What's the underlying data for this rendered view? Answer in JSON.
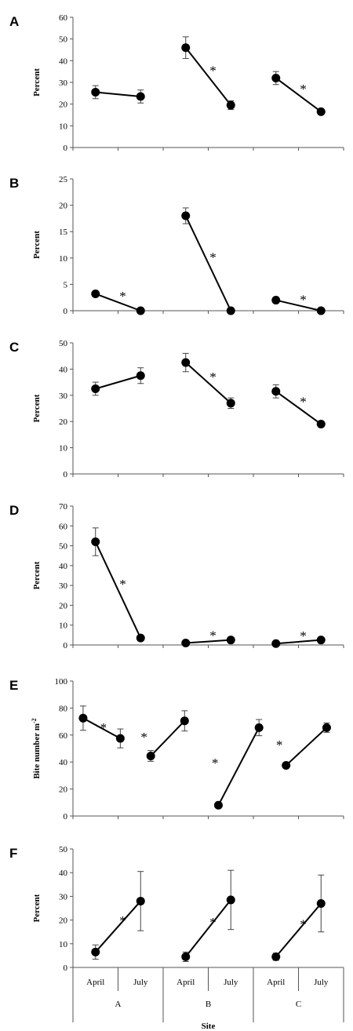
{
  "chart_data": [
    {
      "panel": "A",
      "type": "line",
      "ylabel": "Percent",
      "ylim": [
        0,
        60
      ],
      "yticks": [
        0,
        10,
        20,
        30,
        40,
        50,
        60
      ],
      "categories": [
        "April",
        "July"
      ],
      "groups": [
        {
          "site": "A",
          "values": [
            25.5,
            23.5
          ],
          "errors": [
            3,
            3
          ],
          "significant": false
        },
        {
          "site": "B",
          "values": [
            46,
            19.5
          ],
          "errors": [
            5,
            2
          ],
          "significant": true
        },
        {
          "site": "C",
          "values": [
            32,
            16.5
          ],
          "errors": [
            3,
            1
          ],
          "significant": true
        }
      ]
    },
    {
      "panel": "B",
      "type": "line",
      "ylabel": "Percent",
      "ylim": [
        0,
        25
      ],
      "yticks": [
        0,
        5,
        10,
        15,
        20,
        25
      ],
      "categories": [
        "April",
        "July"
      ],
      "groups": [
        {
          "site": "A",
          "values": [
            3.2,
            0
          ],
          "errors": [
            0.3,
            0
          ],
          "significant": true
        },
        {
          "site": "B",
          "values": [
            18,
            0
          ],
          "errors": [
            1.5,
            0
          ],
          "significant": true
        },
        {
          "site": "C",
          "values": [
            2,
            0
          ],
          "errors": [
            0.3,
            0
          ],
          "significant": true
        }
      ]
    },
    {
      "panel": "C",
      "type": "line",
      "ylabel": "Percent",
      "ylim": [
        0,
        50
      ],
      "yticks": [
        0,
        10,
        20,
        30,
        40,
        50
      ],
      "categories": [
        "April",
        "July"
      ],
      "groups": [
        {
          "site": "A",
          "values": [
            32.5,
            37.5
          ],
          "errors": [
            2.5,
            3
          ],
          "significant": false
        },
        {
          "site": "B",
          "values": [
            42.5,
            27
          ],
          "errors": [
            3.5,
            2
          ],
          "significant": true
        },
        {
          "site": "C",
          "values": [
            31.5,
            19
          ],
          "errors": [
            2.5,
            1
          ],
          "significant": true
        }
      ]
    },
    {
      "panel": "D",
      "type": "line",
      "ylabel": "Percent",
      "ylim": [
        0,
        70
      ],
      "yticks": [
        0,
        10,
        20,
        30,
        40,
        50,
        60,
        70
      ],
      "categories": [
        "April",
        "July"
      ],
      "groups": [
        {
          "site": "A",
          "values": [
            52,
            3.5
          ],
          "errors": [
            7,
            0.5
          ],
          "significant": true
        },
        {
          "site": "B",
          "values": [
            1,
            2.5
          ],
          "errors": [
            0.3,
            0.3
          ],
          "significant": true
        },
        {
          "site": "C",
          "values": [
            0.7,
            2.5
          ],
          "errors": [
            0.2,
            0.3
          ],
          "significant": true
        }
      ]
    },
    {
      "panel": "E",
      "type": "line",
      "ylabel": "Bite number m",
      "ylabel_superscript": "-2",
      "ylim": [
        0,
        100
      ],
      "yticks": [
        0,
        20,
        40,
        60,
        80,
        100
      ],
      "categories": [
        "April",
        "July"
      ],
      "segments": [
        {
          "x_positions": [
            0.15,
            0.7
          ],
          "values": [
            72.5,
            57.5
          ],
          "errors": [
            9,
            7
          ],
          "star_x": 0.45
        },
        {
          "x_positions": [
            1.15,
            1.65
          ],
          "values": [
            44.5,
            70.5
          ],
          "errors": [
            4,
            7.5
          ],
          "star_x": 1.05
        },
        {
          "x_positions": [
            2.15,
            2.75
          ],
          "values": [
            8,
            65.5
          ],
          "errors": [
            1,
            6
          ],
          "star_x": 2.1
        },
        {
          "x_positions": [
            3.15,
            3.75
          ],
          "values": [
            37.5,
            65.5
          ],
          "errors": [
            1.5,
            3.5
          ],
          "star_x": 3.05
        }
      ]
    },
    {
      "panel": "F",
      "type": "line",
      "ylabel": "Percent",
      "ylim": [
        0,
        50
      ],
      "yticks": [
        0,
        10,
        20,
        30,
        40,
        50
      ],
      "categories": [
        "April",
        "July"
      ],
      "groups": [
        {
          "site": "A",
          "values": [
            6.5,
            28
          ],
          "errors": [
            3,
            12.5
          ],
          "significant": true
        },
        {
          "site": "B",
          "values": [
            4.5,
            28.5
          ],
          "errors": [
            2,
            12.5
          ],
          "significant": true
        },
        {
          "site": "C",
          "values": [
            4.5,
            27
          ],
          "errors": [
            1.5,
            12
          ],
          "significant": true
        }
      ]
    }
  ],
  "x_axis": {
    "categories": [
      "April",
      "July",
      "April",
      "July",
      "April",
      "July"
    ],
    "sites": [
      "A",
      "B",
      "C"
    ],
    "xlabel": "Site"
  },
  "star_symbol": "*"
}
